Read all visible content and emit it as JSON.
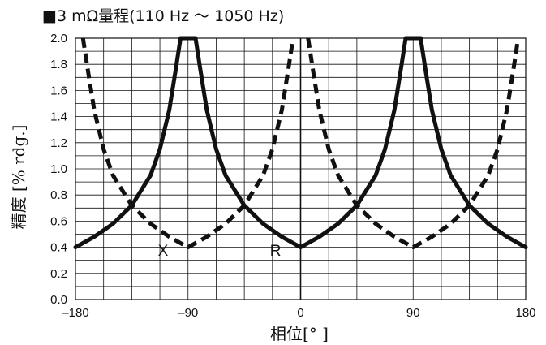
{
  "chart_data": {
    "type": "line",
    "title": "■3 mΩ量程(110 Hz ～ 1050 Hz)",
    "xlabel": "相位[° ]",
    "ylabel": "精度 [% rdg.]",
    "xlim": [
      -180,
      180
    ],
    "ylim": [
      0,
      2.0
    ],
    "x_ticks": [
      "-180",
      "-90",
      "0",
      "90",
      "180"
    ],
    "x_tick_values": [
      -180,
      -90,
      0,
      90,
      180
    ],
    "y_ticks": [
      "0.0",
      "0.2",
      "0.4",
      "0.6",
      "0.8",
      "1.0",
      "1.2",
      "1.4",
      "1.6",
      "1.8",
      "2.0"
    ],
    "y_tick_values": [
      0,
      0.2,
      0.4,
      0.6,
      0.8,
      1.0,
      1.2,
      1.4,
      1.6,
      1.8,
      2.0
    ],
    "grid": true,
    "vertical_grid_step": 22.5,
    "horizontal_grid_step": 0.1,
    "series": [
      {
        "name": "R",
        "style": "solid",
        "color": "#111111",
        "x": [
          -180,
          -165,
          -150,
          -135,
          -120,
          -112.5,
          -105,
          -100,
          -96,
          -84,
          -80,
          -75,
          -67.5,
          -60,
          -45,
          -30,
          -15,
          0,
          15,
          30,
          45,
          60,
          67.5,
          75,
          80,
          84,
          96,
          100,
          105,
          112.5,
          120,
          135,
          150,
          165,
          180
        ],
        "y": [
          0.4,
          0.48,
          0.58,
          0.72,
          0.95,
          1.15,
          1.45,
          1.75,
          2.0,
          2.0,
          1.75,
          1.45,
          1.15,
          0.95,
          0.72,
          0.58,
          0.48,
          0.4,
          0.48,
          0.58,
          0.72,
          0.95,
          1.15,
          1.45,
          1.75,
          2.0,
          2.0,
          1.75,
          1.45,
          1.15,
          0.95,
          0.72,
          0.58,
          0.48,
          0.4
        ]
      },
      {
        "name": "X",
        "style": "dashed",
        "color": "#111111",
        "x": [
          -174,
          -170,
          -165,
          -157.5,
          -150,
          -135,
          -120,
          -105,
          -90,
          -75,
          -60,
          -45,
          -30,
          -22.5,
          -15,
          -10,
          -6
        ],
        "y": [
          2.0,
          1.75,
          1.45,
          1.15,
          0.95,
          0.72,
          0.58,
          0.48,
          0.4,
          0.48,
          0.58,
          0.72,
          0.95,
          1.15,
          1.45,
          1.75,
          2.0
        ]
      },
      {
        "name": "X",
        "style": "dashed",
        "color": "#111111",
        "x": [
          6,
          10,
          15,
          22.5,
          30,
          45,
          60,
          75,
          90,
          105,
          120,
          135,
          150,
          157.5,
          165,
          170,
          174
        ],
        "y": [
          2.0,
          1.75,
          1.45,
          1.15,
          0.95,
          0.72,
          0.58,
          0.48,
          0.4,
          0.48,
          0.58,
          0.72,
          0.95,
          1.15,
          1.45,
          1.75,
          2.0
        ]
      }
    ],
    "annotations": [
      {
        "text": "X",
        "x": -110,
        "y": 0.38
      },
      {
        "text": "R",
        "x": -20,
        "y": 0.38
      }
    ]
  }
}
